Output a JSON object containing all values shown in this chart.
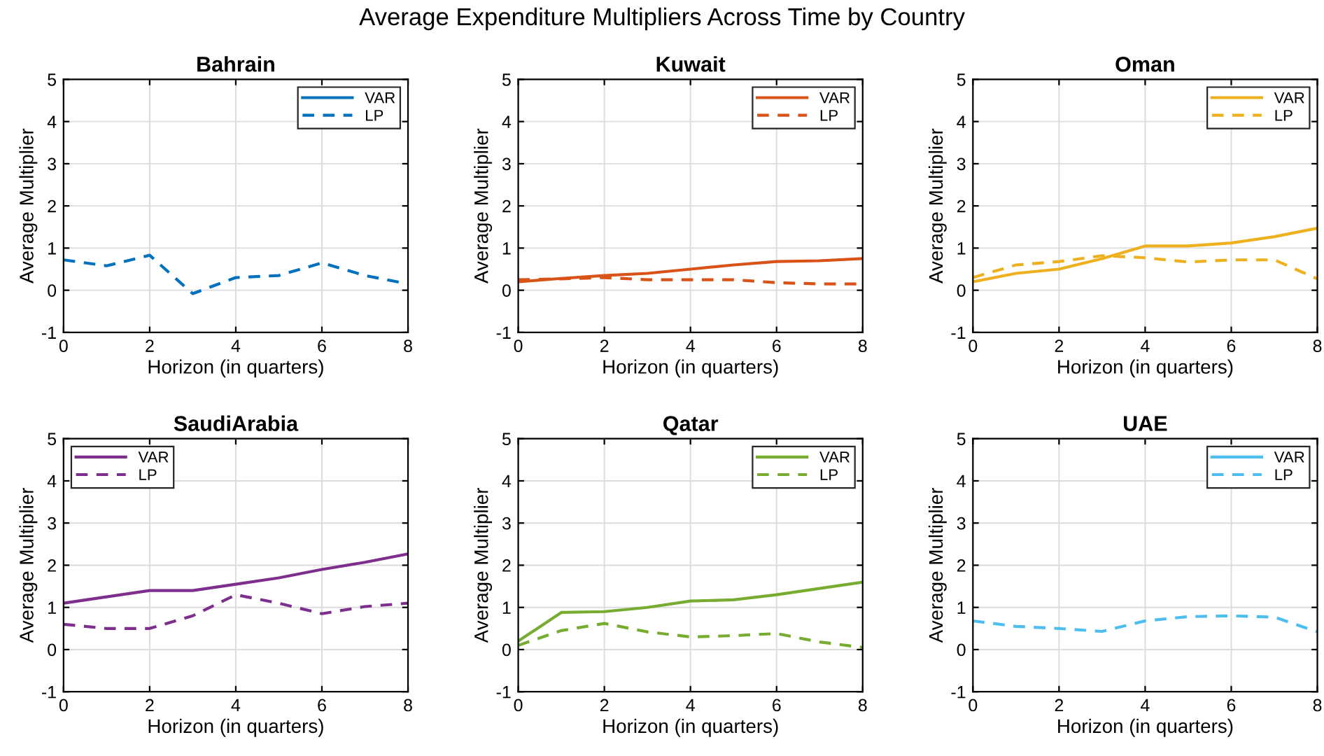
{
  "chart_data": [
    {
      "type": "line",
      "title": "Bahrain",
      "xlabel": "Horizon (in quarters)",
      "ylabel": "Average Multiplier",
      "annotations": [
        "Average Expenditure Multipliers Across Time by Country"
      ],
      "x": [
        0,
        1,
        2,
        3,
        4,
        5,
        6,
        7,
        8
      ],
      "xlim": [
        0,
        8
      ],
      "xticks": [
        0,
        2,
        4,
        6,
        8
      ],
      "ylim": [
        -1,
        5
      ],
      "yticks": [
        -1,
        0,
        1,
        2,
        3,
        4,
        5
      ],
      "grid": true,
      "legend": "top right",
      "series": [
        {
          "name": "VAR",
          "color": "#0072bd",
          "line_style": "solid",
          "values": [
            null,
            null,
            null,
            null,
            null,
            null,
            null,
            null,
            null
          ]
        },
        {
          "name": "LP",
          "color": "#0072bd",
          "line_style": "dashed",
          "values": [
            0.72,
            0.58,
            0.83,
            -0.08,
            0.3,
            0.35,
            0.65,
            0.35,
            0.15
          ]
        }
      ]
    },
    {
      "type": "line",
      "title": "Kuwait",
      "xlabel": "Horizon (in quarters)",
      "ylabel": "Average Multiplier",
      "x": [
        0,
        1,
        2,
        3,
        4,
        5,
        6,
        7,
        8
      ],
      "xlim": [
        0,
        8
      ],
      "xticks": [
        0,
        2,
        4,
        6,
        8
      ],
      "ylim": [
        -1,
        5
      ],
      "yticks": [
        -1,
        0,
        1,
        2,
        3,
        4,
        5
      ],
      "grid": true,
      "legend": "top right",
      "series": [
        {
          "name": "VAR",
          "color": "#d95319",
          "line_style": "solid",
          "values": [
            0.2,
            0.28,
            0.35,
            0.4,
            0.5,
            0.6,
            0.68,
            0.7,
            0.75
          ]
        },
        {
          "name": "LP",
          "color": "#d95319",
          "line_style": "dashed",
          "values": [
            0.25,
            0.27,
            0.3,
            0.25,
            0.25,
            0.25,
            0.18,
            0.15,
            0.15
          ]
        }
      ]
    },
    {
      "type": "line",
      "title": "Oman",
      "xlabel": "Horizon (in quarters)",
      "ylabel": "Average Multiplier",
      "x": [
        0,
        1,
        2,
        3,
        4,
        5,
        6,
        7,
        8
      ],
      "xlim": [
        0,
        8
      ],
      "xticks": [
        0,
        2,
        4,
        6,
        8
      ],
      "ylim": [
        -1,
        5
      ],
      "yticks": [
        -1,
        0,
        1,
        2,
        3,
        4,
        5
      ],
      "grid": true,
      "legend": "top right",
      "series": [
        {
          "name": "VAR",
          "color": "#edb120",
          "line_style": "solid",
          "values": [
            0.2,
            0.4,
            0.5,
            0.75,
            1.05,
            1.05,
            1.12,
            1.27,
            1.47
          ]
        },
        {
          "name": "LP",
          "color": "#edb120",
          "line_style": "dashed",
          "values": [
            0.3,
            0.6,
            0.68,
            0.82,
            0.77,
            0.67,
            0.72,
            0.72,
            0.27
          ]
        }
      ]
    },
    {
      "type": "line",
      "title": "SaudiArabia",
      "xlabel": "Horizon (in quarters)",
      "ylabel": "Average Multiplier",
      "x": [
        0,
        1,
        2,
        3,
        4,
        5,
        6,
        7,
        8
      ],
      "xlim": [
        0,
        8
      ],
      "xticks": [
        0,
        2,
        4,
        6,
        8
      ],
      "ylim": [
        -1,
        5
      ],
      "yticks": [
        -1,
        0,
        1,
        2,
        3,
        4,
        5
      ],
      "grid": true,
      "legend": "top left",
      "series": [
        {
          "name": "VAR",
          "color": "#7e2f8e",
          "line_style": "solid",
          "values": [
            1.1,
            1.25,
            1.4,
            1.4,
            1.55,
            1.7,
            1.9,
            2.07,
            2.27
          ]
        },
        {
          "name": "LP",
          "color": "#7e2f8e",
          "line_style": "dashed",
          "values": [
            0.6,
            0.5,
            0.5,
            0.8,
            1.3,
            1.1,
            0.85,
            1.02,
            1.1
          ]
        }
      ]
    },
    {
      "type": "line",
      "title": "Qatar",
      "xlabel": "Horizon (in quarters)",
      "ylabel": "Average Multiplier",
      "x": [
        0,
        1,
        2,
        3,
        4,
        5,
        6,
        7,
        8
      ],
      "xlim": [
        0,
        8
      ],
      "xticks": [
        0,
        2,
        4,
        6,
        8
      ],
      "ylim": [
        -1,
        5
      ],
      "yticks": [
        -1,
        0,
        1,
        2,
        3,
        4,
        5
      ],
      "grid": true,
      "legend": "top right",
      "series": [
        {
          "name": "VAR",
          "color": "#77ac30",
          "line_style": "solid",
          "values": [
            0.2,
            0.88,
            0.9,
            1.0,
            1.15,
            1.18,
            1.3,
            1.45,
            1.6
          ]
        },
        {
          "name": "LP",
          "color": "#77ac30",
          "line_style": "dashed",
          "values": [
            0.1,
            0.45,
            0.62,
            0.42,
            0.3,
            0.33,
            0.38,
            0.18,
            0.05
          ]
        }
      ]
    },
    {
      "type": "line",
      "title": "UAE",
      "xlabel": "Horizon (in quarters)",
      "ylabel": "Average Multiplier",
      "x": [
        0,
        1,
        2,
        3,
        4,
        5,
        6,
        7,
        8
      ],
      "xlim": [
        0,
        8
      ],
      "xticks": [
        0,
        2,
        4,
        6,
        8
      ],
      "ylim": [
        -1,
        5
      ],
      "yticks": [
        -1,
        0,
        1,
        2,
        3,
        4,
        5
      ],
      "grid": true,
      "legend": "top right",
      "series": [
        {
          "name": "VAR",
          "color": "#4dbeee",
          "line_style": "solid",
          "values": [
            null,
            null,
            null,
            null,
            null,
            null,
            null,
            null,
            null
          ]
        },
        {
          "name": "LP",
          "color": "#4dbeee",
          "line_style": "dashed",
          "values": [
            0.68,
            0.55,
            0.5,
            0.43,
            0.68,
            0.78,
            0.8,
            0.77,
            0.42
          ]
        }
      ]
    }
  ]
}
